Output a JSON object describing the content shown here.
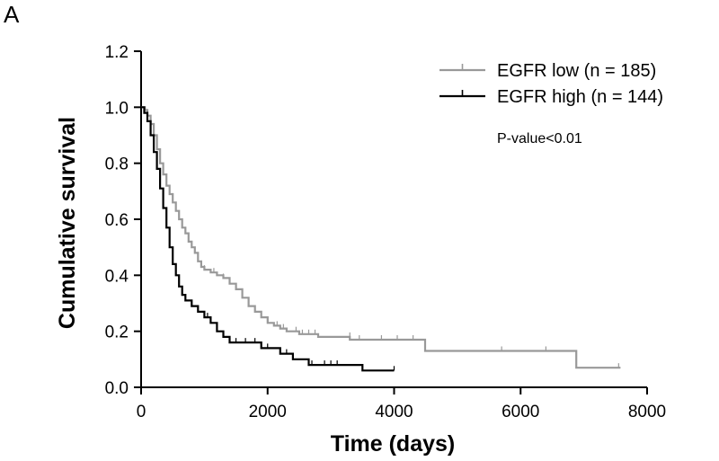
{
  "panel_label": "A",
  "chart_data": {
    "type": "line",
    "title": "",
    "xlabel": "Time (days)",
    "ylabel": "Cumulative survival",
    "xlim": [
      0,
      8000
    ],
    "ylim": [
      0,
      1.2
    ],
    "x_ticks": [
      0,
      2000,
      4000,
      6000,
      8000
    ],
    "y_ticks": [
      0.0,
      0.2,
      0.4,
      0.6,
      0.8,
      1.0,
      1.2
    ],
    "x_tick_labels": [
      "0",
      "2000",
      "4000",
      "6000",
      "8000"
    ],
    "y_tick_labels": [
      "0.0",
      "0.2",
      "0.4",
      "0.6",
      "0.8",
      "1.0",
      "1.2"
    ],
    "grid": false,
    "legend_position": "top-right",
    "annotation": "P-value<0.01",
    "series": [
      {
        "name": "EGFR low (n = 185)",
        "color": "#999999",
        "steps": [
          [
            0,
            1.0
          ],
          [
            60,
            0.99
          ],
          [
            100,
            0.97
          ],
          [
            150,
            0.94
          ],
          [
            200,
            0.9
          ],
          [
            250,
            0.85
          ],
          [
            300,
            0.8
          ],
          [
            350,
            0.76
          ],
          [
            400,
            0.72
          ],
          [
            450,
            0.69
          ],
          [
            500,
            0.66
          ],
          [
            550,
            0.63
          ],
          [
            600,
            0.6
          ],
          [
            650,
            0.57
          ],
          [
            700,
            0.55
          ],
          [
            750,
            0.52
          ],
          [
            800,
            0.5
          ],
          [
            850,
            0.48
          ],
          [
            900,
            0.45
          ],
          [
            950,
            0.43
          ],
          [
            1000,
            0.42
          ],
          [
            1100,
            0.41
          ],
          [
            1200,
            0.4
          ],
          [
            1300,
            0.39
          ],
          [
            1400,
            0.37
          ],
          [
            1500,
            0.35
          ],
          [
            1600,
            0.32
          ],
          [
            1700,
            0.29
          ],
          [
            1800,
            0.27
          ],
          [
            1900,
            0.25
          ],
          [
            2000,
            0.23
          ],
          [
            2100,
            0.22
          ],
          [
            2200,
            0.21
          ],
          [
            2300,
            0.2
          ],
          [
            2500,
            0.19
          ],
          [
            2800,
            0.18
          ],
          [
            3300,
            0.17
          ],
          [
            4490,
            0.13
          ],
          [
            6880,
            0.07
          ],
          [
            7580,
            0.07
          ]
        ],
        "censors": [
          [
            900,
            0.45
          ],
          [
            1000,
            0.42
          ],
          [
            1150,
            0.41
          ],
          [
            1300,
            0.39
          ],
          [
            1700,
            0.29
          ],
          [
            2000,
            0.23
          ],
          [
            2150,
            0.22
          ],
          [
            2250,
            0.21
          ],
          [
            2450,
            0.2
          ],
          [
            2550,
            0.19
          ],
          [
            2650,
            0.19
          ],
          [
            2750,
            0.19
          ],
          [
            3300,
            0.18
          ],
          [
            3450,
            0.17
          ],
          [
            3800,
            0.17
          ],
          [
            4050,
            0.17
          ],
          [
            4300,
            0.17
          ],
          [
            5700,
            0.13
          ],
          [
            6400,
            0.13
          ],
          [
            7550,
            0.07
          ]
        ]
      },
      {
        "name": "EGFR high (n = 144)",
        "color": "#000000",
        "steps": [
          [
            0,
            1.0
          ],
          [
            50,
            0.98
          ],
          [
            100,
            0.95
          ],
          [
            150,
            0.9
          ],
          [
            200,
            0.84
          ],
          [
            250,
            0.78
          ],
          [
            300,
            0.71
          ],
          [
            350,
            0.64
          ],
          [
            400,
            0.57
          ],
          [
            450,
            0.5
          ],
          [
            500,
            0.44
          ],
          [
            550,
            0.4
          ],
          [
            600,
            0.36
          ],
          [
            650,
            0.33
          ],
          [
            700,
            0.31
          ],
          [
            800,
            0.29
          ],
          [
            900,
            0.27
          ],
          [
            1000,
            0.25
          ],
          [
            1100,
            0.23
          ],
          [
            1200,
            0.2
          ],
          [
            1300,
            0.18
          ],
          [
            1400,
            0.16
          ],
          [
            1900,
            0.14
          ],
          [
            2200,
            0.12
          ],
          [
            2400,
            0.1
          ],
          [
            2650,
            0.08
          ],
          [
            3500,
            0.06
          ],
          [
            4000,
            0.06
          ]
        ],
        "censors": [
          [
            900,
            0.27
          ],
          [
            1000,
            0.25
          ],
          [
            1050,
            0.25
          ],
          [
            1500,
            0.16
          ],
          [
            1650,
            0.16
          ],
          [
            1800,
            0.16
          ],
          [
            2000,
            0.14
          ],
          [
            2300,
            0.12
          ],
          [
            2700,
            0.08
          ],
          [
            2900,
            0.08
          ],
          [
            3000,
            0.08
          ],
          [
            3100,
            0.08
          ],
          [
            4000,
            0.06
          ]
        ]
      }
    ]
  }
}
